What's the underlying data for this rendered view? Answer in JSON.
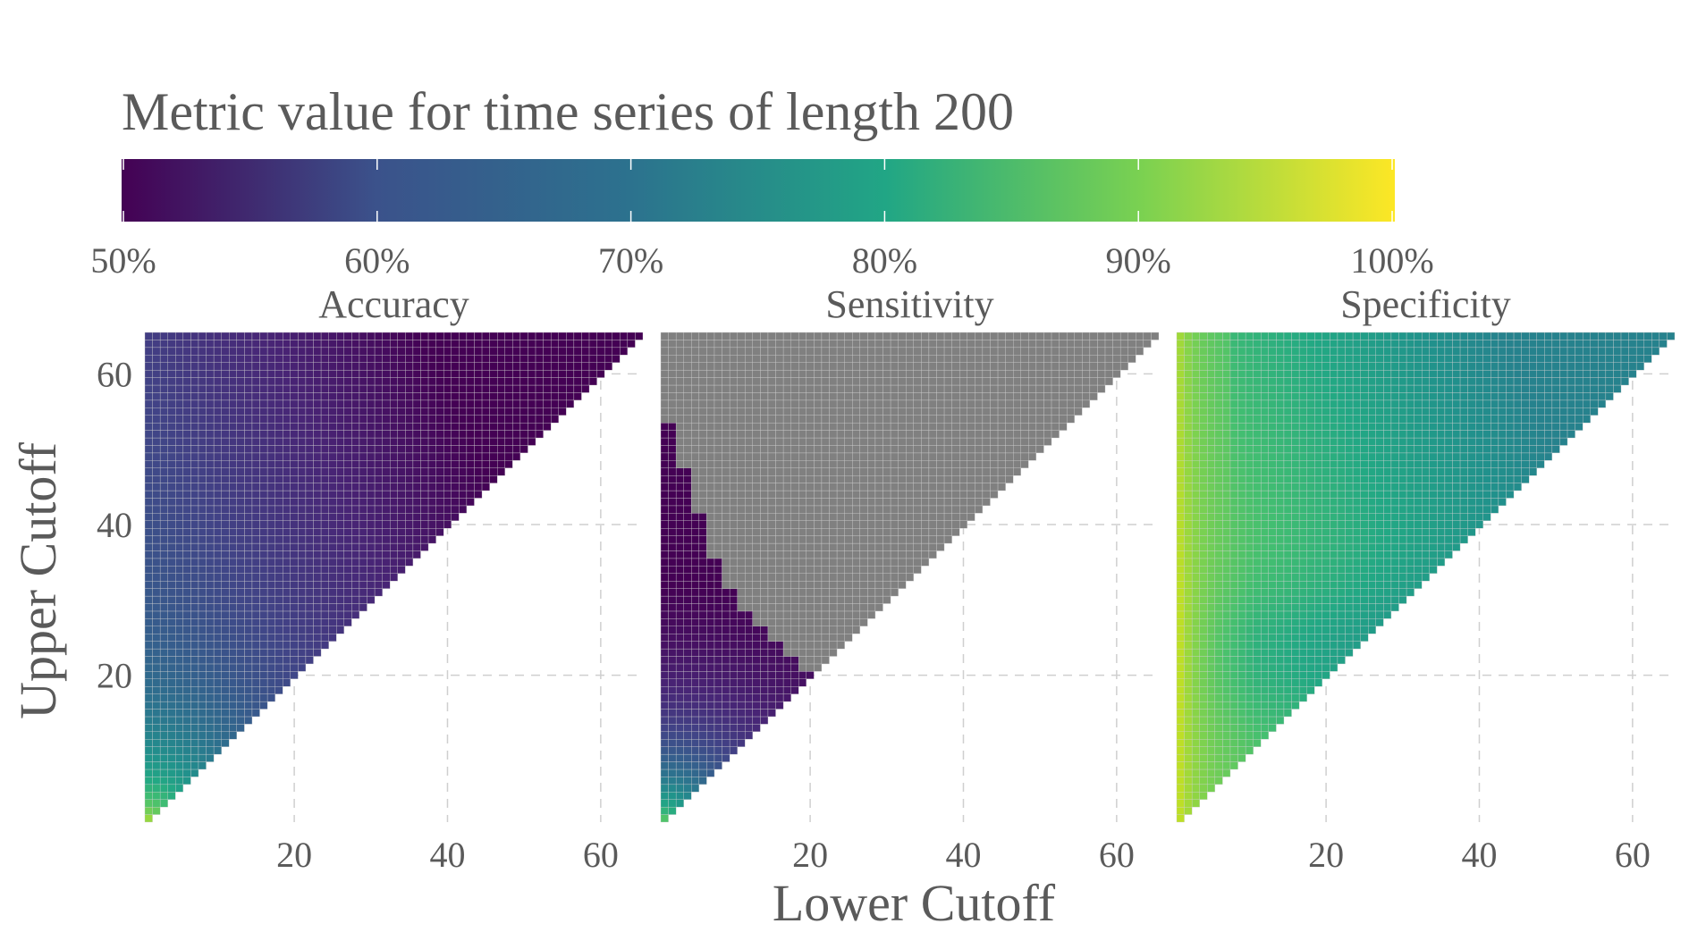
{
  "chart_data": {
    "type": "heatmap",
    "legend": {
      "title": "Metric value for time series of length 200",
      "ticks": [
        "50%",
        "60%",
        "70%",
        "80%",
        "90%",
        "100%"
      ],
      "range": [
        0.5,
        1.0
      ],
      "colormap": "viridis",
      "colors": [
        "#440154",
        "#3b528b",
        "#21918c",
        "#5ec962",
        "#fde725"
      ]
    },
    "missing_color": "#808080",
    "grid_line_color": "#d0d0d0",
    "xlabel": "Lower Cutoff",
    "ylabel": "Upper Cutoff",
    "x_ticks": [
      "20",
      "40",
      "60"
    ],
    "y_ticks": [
      "20",
      "40",
      "60"
    ],
    "xlim": [
      1,
      65
    ],
    "ylim": [
      1,
      65
    ],
    "grid": true,
    "panels": [
      {
        "title": "Accuracy",
        "description": "Triangular grid (upper cutoff > lower cutoff). Highest (~85-90%) near origin, decreasing to ~52% near the diagonal at high cutoffs.",
        "samples": [
          {
            "x": 1,
            "y": 2,
            "value": 0.88
          },
          {
            "x": 1,
            "y": 10,
            "value": 0.8
          },
          {
            "x": 1,
            "y": 20,
            "value": 0.71
          },
          {
            "x": 1,
            "y": 40,
            "value": 0.66
          },
          {
            "x": 1,
            "y": 64,
            "value": 0.66
          },
          {
            "x": 20,
            "y": 40,
            "value": 0.59
          },
          {
            "x": 40,
            "y": 60,
            "value": 0.55
          },
          {
            "x": 55,
            "y": 60,
            "value": 0.52
          },
          {
            "x": 60,
            "y": 63,
            "value": 0.51
          }
        ]
      },
      {
        "title": "Sensitivity",
        "description": "Mostly missing (grey). Defined only near low cutoffs; values ~50-57% along the boundary, up to ~80-85% near origin.",
        "samples": [
          {
            "x": 1,
            "y": 2,
            "value": 0.85
          },
          {
            "x": 1,
            "y": 10,
            "value": 0.72
          },
          {
            "x": 1,
            "y": 30,
            "value": 0.56
          },
          {
            "x": 1,
            "y": 50,
            "value": 0.51
          },
          {
            "x": 10,
            "y": 20,
            "value": 0.53
          },
          {
            "x": 18,
            "y": 19,
            "value": 0.5
          }
        ]
      },
      {
        "title": "Specificity",
        "description": "High (~92-96%) at low lower-cutoff, decreasing to ~75-80% toward high cutoffs.",
        "samples": [
          {
            "x": 1,
            "y": 2,
            "value": 0.94
          },
          {
            "x": 1,
            "y": 64,
            "value": 0.9
          },
          {
            "x": 20,
            "y": 30,
            "value": 0.79
          },
          {
            "x": 40,
            "y": 60,
            "value": 0.8
          },
          {
            "x": 60,
            "y": 65,
            "value": 0.78
          }
        ]
      }
    ]
  }
}
